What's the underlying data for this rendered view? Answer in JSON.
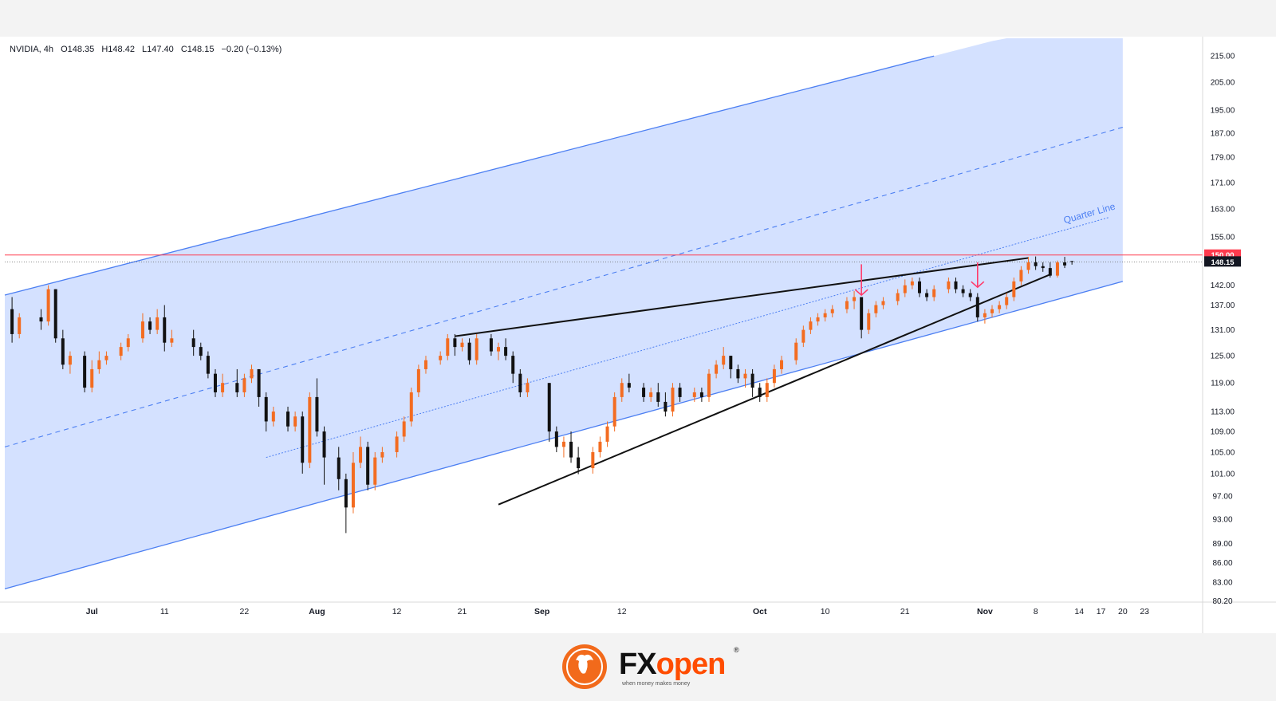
{
  "legend": {
    "symbol": "NVIDIA, 4h",
    "open": "O148.35",
    "high": "H148.42",
    "low": "L147.40",
    "close": "C148.15",
    "change": "−0.20 (−0.13%)"
  },
  "brand": {
    "fx": "FX",
    "open": "open",
    "reg": "®",
    "tagline": "when money makes money"
  },
  "annotation": {
    "quarter_line_label": "Quarter Line"
  },
  "colors": {
    "up": "#f36c21",
    "down": "#111111",
    "channel_fill": "#cddcff",
    "channel_line": "#4c7ff2",
    "resistance": "#ff3b4e",
    "arrow": "#ff3b6b",
    "price_tag": "#131722"
  },
  "chart_data": {
    "type": "candlestick",
    "symbol": "NVIDIA",
    "timeframe": "4h",
    "y_axis": {
      "scale": "log",
      "ticks": [
        215,
        205,
        195,
        187,
        179,
        171,
        163,
        155,
        150,
        148.15,
        142,
        137,
        131,
        125,
        119,
        113,
        109,
        105,
        101,
        97,
        93,
        89,
        86,
        83,
        80.2
      ],
      "tick_labels": [
        "215.00",
        "205.00",
        "195.00",
        "187.00",
        "179.00",
        "171.00",
        "163.00",
        "155.00",
        "150.00",
        "148.15",
        "142.00",
        "137.00",
        "131.00",
        "125.00",
        "119.00",
        "113.00",
        "109.00",
        "105.00",
        "101.00",
        "97.00",
        "93.00",
        "89.00",
        "86.00",
        "83.00",
        "80.20"
      ],
      "ylim": [
        78,
        222
      ]
    },
    "x_axis": {
      "range_dates": [
        "2024-06-19",
        "2024-12-01"
      ],
      "ticks": [
        {
          "date": "2024-07-01",
          "label": "Jul"
        },
        {
          "date": "2024-07-11",
          "label": "11"
        },
        {
          "date": "2024-07-22",
          "label": "22"
        },
        {
          "date": "2024-08-01",
          "label": "Aug"
        },
        {
          "date": "2024-08-12",
          "label": "12"
        },
        {
          "date": "2024-08-21",
          "label": "21"
        },
        {
          "date": "2024-09-01",
          "label": "Sep"
        },
        {
          "date": "2024-09-12",
          "label": "12"
        },
        {
          "date": "2024-10-01",
          "label": "Oct"
        },
        {
          "date": "2024-10-10",
          "label": "10"
        },
        {
          "date": "2024-10-21",
          "label": "21"
        },
        {
          "date": "2024-11-01",
          "label": "Nov"
        },
        {
          "date": "2024-11-08",
          "label": "8"
        },
        {
          "date": "2024-11-14",
          "label": "14"
        },
        {
          "date": "2024-11-17",
          "label": "17"
        },
        {
          "date": "2024-11-20",
          "label": "20"
        },
        {
          "date": "2024-11-23",
          "label": "23"
        }
      ]
    },
    "last_price": 148.15,
    "resistance_level": 150.0,
    "channel": {
      "upper": [
        {
          "date": "2024-06-19",
          "price": 139.5
        },
        {
          "date": "2024-10-25",
          "price": 215
        }
      ],
      "lower": [
        {
          "date": "2024-06-19",
          "price": 82
        },
        {
          "date": "2024-11-20",
          "price": 143
        }
      ],
      "median": [
        {
          "date": "2024-06-19",
          "price": 106
        },
        {
          "date": "2024-11-20",
          "price": 189
        }
      ],
      "quarter": [
        {
          "date": "2024-07-25",
          "price": 104
        },
        {
          "date": "2024-11-18",
          "price": 160.5
        }
      ],
      "shade_end_date": "2024-11-20"
    },
    "trendlines": [
      {
        "name": "wedge-upper",
        "points": [
          {
            "date": "2024-08-20",
            "price": 129.5
          },
          {
            "date": "2024-11-07",
            "price": 149.2
          }
        ]
      },
      {
        "name": "wedge-lower",
        "points": [
          {
            "date": "2024-08-26",
            "price": 95.5
          },
          {
            "date": "2024-11-10",
            "price": 144.8
          }
        ]
      }
    ],
    "arrows": [
      {
        "date": "2024-10-15",
        "from": 147.5,
        "to": 139.5
      },
      {
        "date": "2024-10-31",
        "from": 148.0,
        "to": 141.5
      }
    ],
    "candles": [
      {
        "d": "2024-06-20",
        "o": 136,
        "h": 139,
        "c": 130,
        "l": 128
      },
      {
        "d": "2024-06-21",
        "o": 130,
        "h": 135,
        "c": 134,
        "l": 129
      },
      {
        "d": "2024-06-24",
        "o": 134,
        "h": 136,
        "c": 133,
        "l": 131
      },
      {
        "d": "2024-06-25",
        "o": 133,
        "h": 142,
        "c": 141,
        "l": 132
      },
      {
        "d": "2024-06-26",
        "o": 141,
        "h": 141,
        "c": 129,
        "l": 128
      },
      {
        "d": "2024-06-27",
        "o": 129,
        "h": 131,
        "c": 123,
        "l": 122
      },
      {
        "d": "2024-06-28",
        "o": 123,
        "h": 126,
        "c": 125,
        "l": 121
      },
      {
        "d": "2024-06-30",
        "o": 125,
        "h": 126,
        "c": 118,
        "l": 117
      },
      {
        "d": "2024-07-01",
        "o": 118,
        "h": 124,
        "c": 122,
        "l": 117
      },
      {
        "d": "2024-07-02",
        "o": 122,
        "h": 126,
        "c": 124,
        "l": 121
      },
      {
        "d": "2024-07-03",
        "o": 124,
        "h": 126,
        "c": 125,
        "l": 123
      },
      {
        "d": "2024-07-05",
        "o": 125,
        "h": 128,
        "c": 127,
        "l": 124
      },
      {
        "d": "2024-07-06",
        "o": 127,
        "h": 130,
        "c": 129,
        "l": 126
      },
      {
        "d": "2024-07-08",
        "o": 129,
        "h": 135,
        "c": 133,
        "l": 128
      },
      {
        "d": "2024-07-09",
        "o": 133,
        "h": 134,
        "c": 131,
        "l": 130
      },
      {
        "d": "2024-07-10",
        "o": 131,
        "h": 136,
        "c": 134,
        "l": 130
      },
      {
        "d": "2024-07-11",
        "o": 134,
        "h": 137,
        "c": 128,
        "l": 126
      },
      {
        "d": "2024-07-12",
        "o": 128,
        "h": 131,
        "c": 129,
        "l": 127
      },
      {
        "d": "2024-07-15",
        "o": 129,
        "h": 131,
        "c": 127,
        "l": 125
      },
      {
        "d": "2024-07-16",
        "o": 127,
        "h": 128,
        "c": 125,
        "l": 124
      },
      {
        "d": "2024-07-17",
        "o": 125,
        "h": 126,
        "c": 121,
        "l": 120
      },
      {
        "d": "2024-07-18",
        "o": 121,
        "h": 122,
        "c": 117,
        "l": 116
      },
      {
        "d": "2024-07-19",
        "o": 117,
        "h": 121,
        "c": 119,
        "l": 116
      },
      {
        "d": "2024-07-21",
        "o": 119,
        "h": 122,
        "c": 117,
        "l": 116
      },
      {
        "d": "2024-07-22",
        "o": 117,
        "h": 121,
        "c": 120,
        "l": 116
      },
      {
        "d": "2024-07-23",
        "o": 120,
        "h": 123,
        "c": 122,
        "l": 119
      },
      {
        "d": "2024-07-24",
        "o": 122,
        "h": 122,
        "c": 116,
        "l": 114
      },
      {
        "d": "2024-07-25",
        "o": 116,
        "h": 117,
        "c": 111,
        "l": 109
      },
      {
        "d": "2024-07-26",
        "o": 111,
        "h": 114,
        "c": 113,
        "l": 110
      },
      {
        "d": "2024-07-28",
        "o": 113,
        "h": 114,
        "c": 110,
        "l": 109
      },
      {
        "d": "2024-07-29",
        "o": 110,
        "h": 113,
        "c": 112,
        "l": 109
      },
      {
        "d": "2024-07-30",
        "o": 112,
        "h": 113,
        "c": 103,
        "l": 101
      },
      {
        "d": "2024-07-31",
        "o": 103,
        "h": 117,
        "c": 116,
        "l": 102
      },
      {
        "d": "2024-08-01",
        "o": 116,
        "h": 120,
        "c": 109,
        "l": 108
      },
      {
        "d": "2024-08-02",
        "o": 109,
        "h": 110,
        "c": 104,
        "l": 99
      },
      {
        "d": "2024-08-04",
        "o": 104,
        "h": 106,
        "c": 100,
        "l": 98
      },
      {
        "d": "2024-08-05",
        "o": 100,
        "h": 101,
        "c": 95,
        "l": 90.7
      },
      {
        "d": "2024-08-06",
        "o": 95,
        "h": 105,
        "c": 103,
        "l": 94
      },
      {
        "d": "2024-08-07",
        "o": 103,
        "h": 108,
        "c": 106,
        "l": 102
      },
      {
        "d": "2024-08-08",
        "o": 106,
        "h": 107,
        "c": 99,
        "l": 98
      },
      {
        "d": "2024-08-09",
        "o": 99,
        "h": 105,
        "c": 104,
        "l": 98
      },
      {
        "d": "2024-08-10",
        "o": 104,
        "h": 106,
        "c": 105,
        "l": 103
      },
      {
        "d": "2024-08-12",
        "o": 105,
        "h": 109,
        "c": 108,
        "l": 104
      },
      {
        "d": "2024-08-13",
        "o": 108,
        "h": 112,
        "c": 111,
        "l": 107
      },
      {
        "d": "2024-08-14",
        "o": 111,
        "h": 118,
        "c": 117,
        "l": 110
      },
      {
        "d": "2024-08-15",
        "o": 117,
        "h": 123,
        "c": 122,
        "l": 116
      },
      {
        "d": "2024-08-16",
        "o": 122,
        "h": 125,
        "c": 124,
        "l": 121
      },
      {
        "d": "2024-08-18",
        "o": 124,
        "h": 126,
        "c": 125,
        "l": 123
      },
      {
        "d": "2024-08-19",
        "o": 125,
        "h": 130,
        "c": 129,
        "l": 124
      },
      {
        "d": "2024-08-20",
        "o": 129,
        "h": 130,
        "c": 127,
        "l": 125
      },
      {
        "d": "2024-08-21",
        "o": 127,
        "h": 129,
        "c": 128,
        "l": 126
      },
      {
        "d": "2024-08-22",
        "o": 128,
        "h": 129,
        "c": 124,
        "l": 123
      },
      {
        "d": "2024-08-23",
        "o": 124,
        "h": 130,
        "c": 129,
        "l": 123
      },
      {
        "d": "2024-08-25",
        "o": 129,
        "h": 130,
        "c": 126,
        "l": 125
      },
      {
        "d": "2024-08-26",
        "o": 126,
        "h": 128,
        "c": 127,
        "l": 124
      },
      {
        "d": "2024-08-27",
        "o": 127,
        "h": 129,
        "c": 125,
        "l": 124
      },
      {
        "d": "2024-08-28",
        "o": 125,
        "h": 126,
        "c": 121,
        "l": 119
      },
      {
        "d": "2024-08-29",
        "o": 121,
        "h": 122,
        "c": 117,
        "l": 116
      },
      {
        "d": "2024-08-30",
        "o": 117,
        "h": 120,
        "c": 119,
        "l": 116
      },
      {
        "d": "2024-09-02",
        "o": 119,
        "h": 119,
        "c": 109,
        "l": 107
      },
      {
        "d": "2024-09-03",
        "o": 109,
        "h": 110,
        "c": 106,
        "l": 105
      },
      {
        "d": "2024-09-04",
        "o": 106,
        "h": 108,
        "c": 107,
        "l": 104
      },
      {
        "d": "2024-09-05",
        "o": 107,
        "h": 109,
        "c": 104,
        "l": 103
      },
      {
        "d": "2024-09-06",
        "o": 104,
        "h": 106,
        "c": 102,
        "l": 100.9
      },
      {
        "d": "2024-09-08",
        "o": 102,
        "h": 106,
        "c": 105,
        "l": 101
      },
      {
        "d": "2024-09-09",
        "o": 105,
        "h": 108,
        "c": 107,
        "l": 104
      },
      {
        "d": "2024-09-10",
        "o": 107,
        "h": 111,
        "c": 110,
        "l": 106
      },
      {
        "d": "2024-09-11",
        "o": 110,
        "h": 117,
        "c": 116,
        "l": 109
      },
      {
        "d": "2024-09-12",
        "o": 116,
        "h": 120,
        "c": 119,
        "l": 115
      },
      {
        "d": "2024-09-13",
        "o": 119,
        "h": 121,
        "c": 118,
        "l": 117
      },
      {
        "d": "2024-09-15",
        "o": 118,
        "h": 119,
        "c": 116,
        "l": 115
      },
      {
        "d": "2024-09-16",
        "o": 116,
        "h": 118,
        "c": 117,
        "l": 115
      },
      {
        "d": "2024-09-17",
        "o": 117,
        "h": 119,
        "c": 115,
        "l": 114
      },
      {
        "d": "2024-09-18",
        "o": 115,
        "h": 117,
        "c": 113,
        "l": 112
      },
      {
        "d": "2024-09-19",
        "o": 113,
        "h": 119,
        "c": 118,
        "l": 112
      },
      {
        "d": "2024-09-20",
        "o": 118,
        "h": 119,
        "c": 116,
        "l": 115
      },
      {
        "d": "2024-09-22",
        "o": 116,
        "h": 118,
        "c": 117,
        "l": 115
      },
      {
        "d": "2024-09-23",
        "o": 117,
        "h": 118,
        "c": 116,
        "l": 115
      },
      {
        "d": "2024-09-24",
        "o": 116,
        "h": 122,
        "c": 121,
        "l": 115
      },
      {
        "d": "2024-09-25",
        "o": 121,
        "h": 124,
        "c": 123,
        "l": 120
      },
      {
        "d": "2024-09-26",
        "o": 123,
        "h": 127,
        "c": 125,
        "l": 122
      },
      {
        "d": "2024-09-27",
        "o": 125,
        "h": 125,
        "c": 122,
        "l": 120
      },
      {
        "d": "2024-09-28",
        "o": 122,
        "h": 123,
        "c": 120,
        "l": 119
      },
      {
        "d": "2024-09-29",
        "o": 120,
        "h": 122,
        "c": 121,
        "l": 118
      },
      {
        "d": "2024-09-30",
        "o": 121,
        "h": 122,
        "c": 118,
        "l": 116
      },
      {
        "d": "2024-10-01",
        "o": 118,
        "h": 119,
        "c": 116,
        "l": 115
      },
      {
        "d": "2024-10-02",
        "o": 116,
        "h": 120,
        "c": 119,
        "l": 115
      },
      {
        "d": "2024-10-03",
        "o": 119,
        "h": 123,
        "c": 122,
        "l": 118
      },
      {
        "d": "2024-10-04",
        "o": 122,
        "h": 125,
        "c": 124,
        "l": 121
      },
      {
        "d": "2024-10-06",
        "o": 124,
        "h": 129,
        "c": 128,
        "l": 123
      },
      {
        "d": "2024-10-07",
        "o": 128,
        "h": 132,
        "c": 131,
        "l": 127
      },
      {
        "d": "2024-10-08",
        "o": 131,
        "h": 134,
        "c": 133,
        "l": 130
      },
      {
        "d": "2024-10-09",
        "o": 133,
        "h": 135,
        "c": 134,
        "l": 132
      },
      {
        "d": "2024-10-10",
        "o": 134,
        "h": 136,
        "c": 135,
        "l": 133
      },
      {
        "d": "2024-10-11",
        "o": 135,
        "h": 137,
        "c": 136,
        "l": 134
      },
      {
        "d": "2024-10-13",
        "o": 136,
        "h": 139,
        "c": 138,
        "l": 135
      },
      {
        "d": "2024-10-14",
        "o": 138,
        "h": 140.5,
        "c": 139,
        "l": 136
      },
      {
        "d": "2024-10-15",
        "o": 139,
        "h": 139,
        "c": 131,
        "l": 129
      },
      {
        "d": "2024-10-16",
        "o": 131,
        "h": 136,
        "c": 135,
        "l": 130
      },
      {
        "d": "2024-10-17",
        "o": 135,
        "h": 138,
        "c": 137,
        "l": 134
      },
      {
        "d": "2024-10-18",
        "o": 137,
        "h": 139,
        "c": 138,
        "l": 136
      },
      {
        "d": "2024-10-20",
        "o": 138,
        "h": 141,
        "c": 140,
        "l": 137
      },
      {
        "d": "2024-10-21",
        "o": 140,
        "h": 143.5,
        "c": 142,
        "l": 139
      },
      {
        "d": "2024-10-22",
        "o": 142,
        "h": 144,
        "c": 143,
        "l": 141
      },
      {
        "d": "2024-10-23",
        "o": 143,
        "h": 144,
        "c": 140,
        "l": 139
      },
      {
        "d": "2024-10-24",
        "o": 140,
        "h": 141,
        "c": 139,
        "l": 138
      },
      {
        "d": "2024-10-25",
        "o": 139,
        "h": 142,
        "c": 141,
        "l": 138
      },
      {
        "d": "2024-10-27",
        "o": 141,
        "h": 144,
        "c": 143,
        "l": 140
      },
      {
        "d": "2024-10-28",
        "o": 143,
        "h": 144,
        "c": 141,
        "l": 140
      },
      {
        "d": "2024-10-29",
        "o": 141,
        "h": 142,
        "c": 140,
        "l": 139
      },
      {
        "d": "2024-10-30",
        "o": 140,
        "h": 141,
        "c": 139,
        "l": 138
      },
      {
        "d": "2024-10-31",
        "o": 139,
        "h": 140,
        "c": 134,
        "l": 133
      },
      {
        "d": "2024-11-01",
        "o": 134,
        "h": 136,
        "c": 135,
        "l": 132.5
      },
      {
        "d": "2024-11-02",
        "o": 135,
        "h": 137,
        "c": 136,
        "l": 134
      },
      {
        "d": "2024-11-03",
        "o": 136,
        "h": 138,
        "c": 137,
        "l": 135
      },
      {
        "d": "2024-11-04",
        "o": 137,
        "h": 140,
        "c": 139,
        "l": 136
      },
      {
        "d": "2024-11-05",
        "o": 139,
        "h": 144,
        "c": 143,
        "l": 138
      },
      {
        "d": "2024-11-06",
        "o": 143,
        "h": 147,
        "c": 146,
        "l": 142
      },
      {
        "d": "2024-11-07",
        "o": 146,
        "h": 149.5,
        "c": 148,
        "l": 145
      },
      {
        "d": "2024-11-08",
        "o": 148,
        "h": 149.6,
        "c": 147,
        "l": 146
      },
      {
        "d": "2024-11-09",
        "o": 147,
        "h": 148,
        "c": 146.5,
        "l": 145.5
      },
      {
        "d": "2024-11-10",
        "o": 146.5,
        "h": 148,
        "c": 144.5,
        "l": 144
      },
      {
        "d": "2024-11-11",
        "o": 144.5,
        "h": 148.5,
        "c": 148,
        "l": 144
      },
      {
        "d": "2024-11-12",
        "o": 148,
        "h": 149.5,
        "c": 147.2,
        "l": 146.5
      },
      {
        "d": "2024-11-13",
        "o": 148.35,
        "h": 148.42,
        "c": 148.15,
        "l": 147.4
      }
    ]
  }
}
